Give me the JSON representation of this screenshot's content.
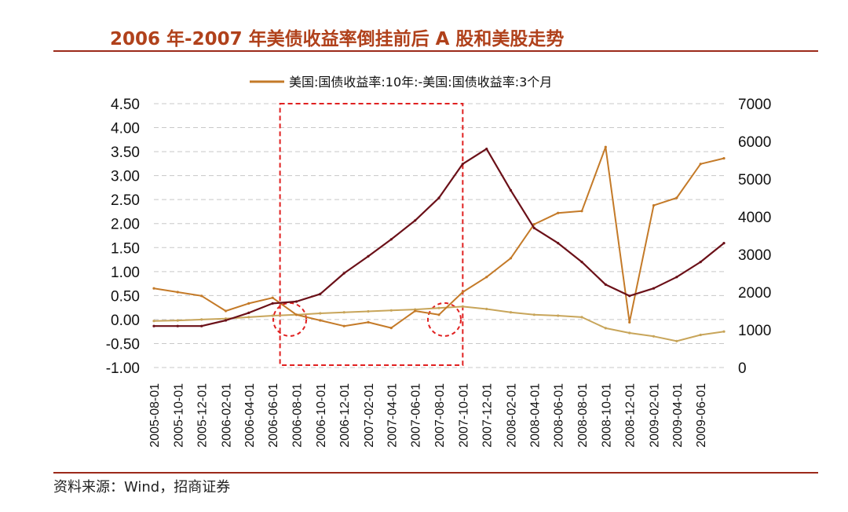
{
  "page": {
    "title": "2006 年-2007 年美债收益率倒挂前后 A 股和美股走势",
    "source": "资料来源：Wind，招商证券"
  },
  "colors": {
    "title": "#b0411b",
    "rule": "#9c2a1a",
    "spread_line": "#c8a55a",
    "a_share_line": "#c47a28",
    "us_stock_line": "#6b1018",
    "highlight": "#e02020",
    "grid": "#c8c8c8"
  },
  "chart_data": {
    "type": "line",
    "legend": [
      "美国:国债收益率:10年:-美国:国债收益率:3个月"
    ],
    "legend_position": "top",
    "grid": "horizontal dashed",
    "y_left": {
      "ylim": [
        -1.0,
        4.5
      ],
      "ticks": [
        "4.50",
        "4.00",
        "3.50",
        "3.00",
        "2.50",
        "2.00",
        "1.50",
        "1.00",
        "0.50",
        "0.00",
        "-0.50",
        "-1.00"
      ]
    },
    "y_right": {
      "ylim": [
        0,
        7000
      ],
      "ticks": [
        "7000",
        "6000",
        "5000",
        "4000",
        "3000",
        "2000",
        "1000",
        "0"
      ]
    },
    "x_ticks": [
      "2005-08-01",
      "2005-10-01",
      "2005-12-01",
      "2006-02-01",
      "2006-04-01",
      "2006-06-01",
      "2006-08-01",
      "2006-10-01",
      "2006-12-01",
      "2007-02-01",
      "2007-04-01",
      "2007-06-01",
      "2007-08-01",
      "2007-10-01",
      "2007-12-01",
      "2008-02-01",
      "2008-04-01",
      "2008-06-01",
      "2008-08-01",
      "2008-10-01",
      "2008-12-01",
      "2009-02-01",
      "2009-04-01",
      "2009-06-01"
    ],
    "series": [
      {
        "name": "美国:国债收益率:10年:-美国:国债收益率:3个月",
        "axis": "left",
        "x": [
          "2005-08-01",
          "2005-10-01",
          "2005-12-01",
          "2006-02-01",
          "2006-04-01",
          "2006-06-01",
          "2006-08-01",
          "2006-10-01",
          "2006-12-01",
          "2007-02-01",
          "2007-04-01",
          "2007-06-01",
          "2007-08-01",
          "2007-10-01",
          "2007-12-01",
          "2008-02-01",
          "2008-04-01",
          "2008-06-01",
          "2008-08-01",
          "2008-10-01",
          "2008-12-01",
          "2009-02-01",
          "2009-04-01",
          "2009-06-01",
          "2009-07-31"
        ],
        "values": [
          -0.03,
          -0.02,
          0.0,
          0.02,
          0.05,
          0.08,
          0.1,
          0.13,
          0.15,
          0.17,
          0.19,
          0.21,
          0.24,
          0.27,
          0.22,
          0.15,
          0.1,
          0.08,
          0.05,
          -0.18,
          -0.28,
          -0.35,
          -0.45,
          -0.32,
          -0.25
        ]
      },
      {
        "axis": "right",
        "x": [
          "2005-08-01",
          "2005-10-01",
          "2005-12-01",
          "2006-02-01",
          "2006-04-01",
          "2006-06-01",
          "2006-08-01",
          "2006-10-01",
          "2006-12-01",
          "2007-02-01",
          "2007-04-01",
          "2007-06-01",
          "2007-08-01",
          "2007-10-01",
          "2007-12-01",
          "2008-02-01",
          "2008-04-01",
          "2008-06-01",
          "2008-08-01",
          "2008-10-01",
          "2008-12-01",
          "2009-02-01",
          "2009-04-01",
          "2009-06-01",
          "2009-07-31"
        ],
        "values": [
          2100,
          2000,
          1900,
          1500,
          1700,
          1850,
          1400,
          1250,
          1100,
          1200,
          1050,
          1500,
          1400,
          2000,
          2400,
          2900,
          3800,
          4100,
          4150,
          5850,
          1200,
          4300,
          4500,
          5400,
          5550
        ]
      },
      {
        "axis": "right",
        "x": [
          "2005-08-01",
          "2005-10-01",
          "2005-12-01",
          "2006-02-01",
          "2006-04-01",
          "2006-06-01",
          "2006-08-01",
          "2006-10-01",
          "2006-12-01",
          "2007-02-01",
          "2007-04-01",
          "2007-06-01",
          "2007-08-01",
          "2007-10-01",
          "2007-12-01",
          "2008-02-01",
          "2008-04-01",
          "2008-06-01",
          "2008-08-01",
          "2008-10-01",
          "2008-12-01",
          "2009-02-01",
          "2009-04-01",
          "2009-06-01",
          "2009-07-31"
        ],
        "values": [
          1100,
          1100,
          1100,
          1250,
          1450,
          1700,
          1750,
          1950,
          2500,
          2950,
          3400,
          3900,
          4500,
          5400,
          5800,
          4700,
          3700,
          3300,
          2800,
          2200,
          1900,
          2100,
          2400,
          2800,
          3300
        ]
      }
    ]
  }
}
